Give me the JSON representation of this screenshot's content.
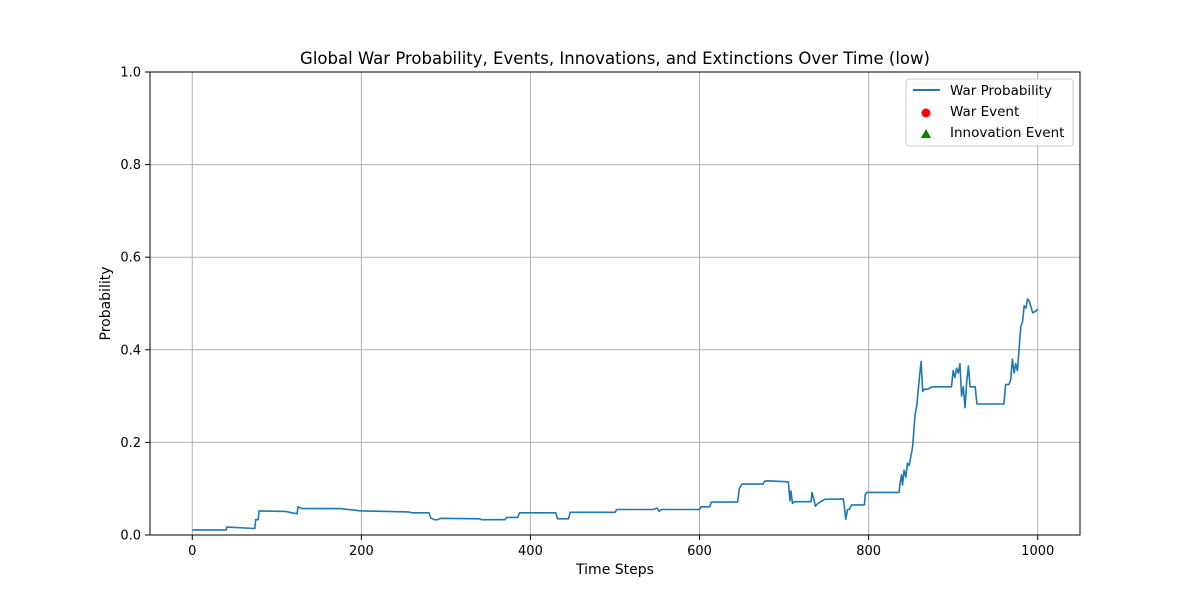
{
  "chart_data": {
    "type": "line",
    "title": "Global War Probability, Events, Innovations, and Extinctions Over Time (low)",
    "xlabel": "Time Steps",
    "ylabel": "Probability",
    "xlim": [
      -50,
      1050
    ],
    "ylim": [
      0,
      1
    ],
    "x_ticks": [
      0,
      200,
      400,
      600,
      800,
      1000
    ],
    "x_tick_labels": [
      "0",
      "200",
      "400",
      "600",
      "800",
      "1000"
    ],
    "y_ticks": [
      0,
      0.2,
      0.4,
      0.6,
      0.8,
      1.0
    ],
    "y_tick_labels": [
      "0.0",
      "0.2",
      "0.4",
      "0.6",
      "0.8",
      "1.0"
    ],
    "grid": true,
    "legend_position": "top-right",
    "colors": {
      "line": "#1f77b4",
      "war_event": "#ff0000",
      "innovation_event": "#008000",
      "grid": "#b0b0b0"
    },
    "legend": [
      {
        "label": "War Probability",
        "marker": "line",
        "color": "#1f77b4"
      },
      {
        "label": "War Event",
        "marker": "circle",
        "color": "#ff0000"
      },
      {
        "label": "Innovation Event",
        "marker": "triangle",
        "color": "#008000"
      }
    ],
    "series": [
      {
        "name": "War Probability",
        "x": [
          0,
          40,
          41,
          74,
          75,
          78,
          79,
          110,
          120,
          124,
          125,
          130,
          175,
          200,
          255,
          260,
          280,
          282,
          286,
          290,
          294,
          340,
          342,
          370,
          372,
          385,
          387,
          400,
          430,
          432,
          445,
          447,
          500,
          502,
          545,
          550,
          552,
          555,
          556,
          600,
          602,
          612,
          614,
          645,
          647,
          650,
          675,
          677,
          680,
          705,
          707,
          708,
          710,
          712,
          732,
          733,
          735,
          737,
          740,
          748,
          770,
          772,
          773,
          775,
          777,
          780,
          795,
          796,
          798,
          836,
          837,
          839,
          840,
          842,
          844,
          846,
          848,
          852,
          855,
          857,
          860,
          862,
          864,
          866,
          870,
          875,
          880,
          890,
          898,
          900,
          902,
          904,
          906,
          908,
          910,
          912,
          914,
          916,
          918,
          920,
          922,
          926,
          928,
          940,
          960,
          962,
          966,
          968,
          970,
          972,
          974,
          976,
          980,
          982,
          984,
          986,
          988,
          990,
          994,
          998,
          1000
        ],
        "values": [
          0.011,
          0.011,
          0.017,
          0.014,
          0.033,
          0.033,
          0.052,
          0.051,
          0.047,
          0.046,
          0.061,
          0.057,
          0.057,
          0.052,
          0.05,
          0.048,
          0.048,
          0.037,
          0.033,
          0.033,
          0.036,
          0.035,
          0.033,
          0.033,
          0.038,
          0.038,
          0.048,
          0.048,
          0.048,
          0.035,
          0.035,
          0.049,
          0.049,
          0.055,
          0.055,
          0.058,
          0.051,
          0.055,
          0.055,
          0.055,
          0.061,
          0.061,
          0.071,
          0.071,
          0.1,
          0.11,
          0.11,
          0.116,
          0.117,
          0.115,
          0.074,
          0.095,
          0.068,
          0.072,
          0.072,
          0.092,
          0.078,
          0.062,
          0.068,
          0.077,
          0.078,
          0.05,
          0.034,
          0.055,
          0.055,
          0.065,
          0.065,
          0.088,
          0.092,
          0.092,
          0.11,
          0.13,
          0.108,
          0.14,
          0.125,
          0.155,
          0.15,
          0.19,
          0.26,
          0.28,
          0.34,
          0.375,
          0.31,
          0.315,
          0.315,
          0.32,
          0.32,
          0.32,
          0.32,
          0.355,
          0.34,
          0.36,
          0.35,
          0.37,
          0.3,
          0.32,
          0.275,
          0.33,
          0.365,
          0.32,
          0.32,
          0.32,
          0.283,
          0.283,
          0.283,
          0.325,
          0.325,
          0.335,
          0.38,
          0.35,
          0.37,
          0.355,
          0.45,
          0.46,
          0.495,
          0.49,
          0.51,
          0.505,
          0.48,
          0.484,
          0.488
        ]
      }
    ]
  }
}
